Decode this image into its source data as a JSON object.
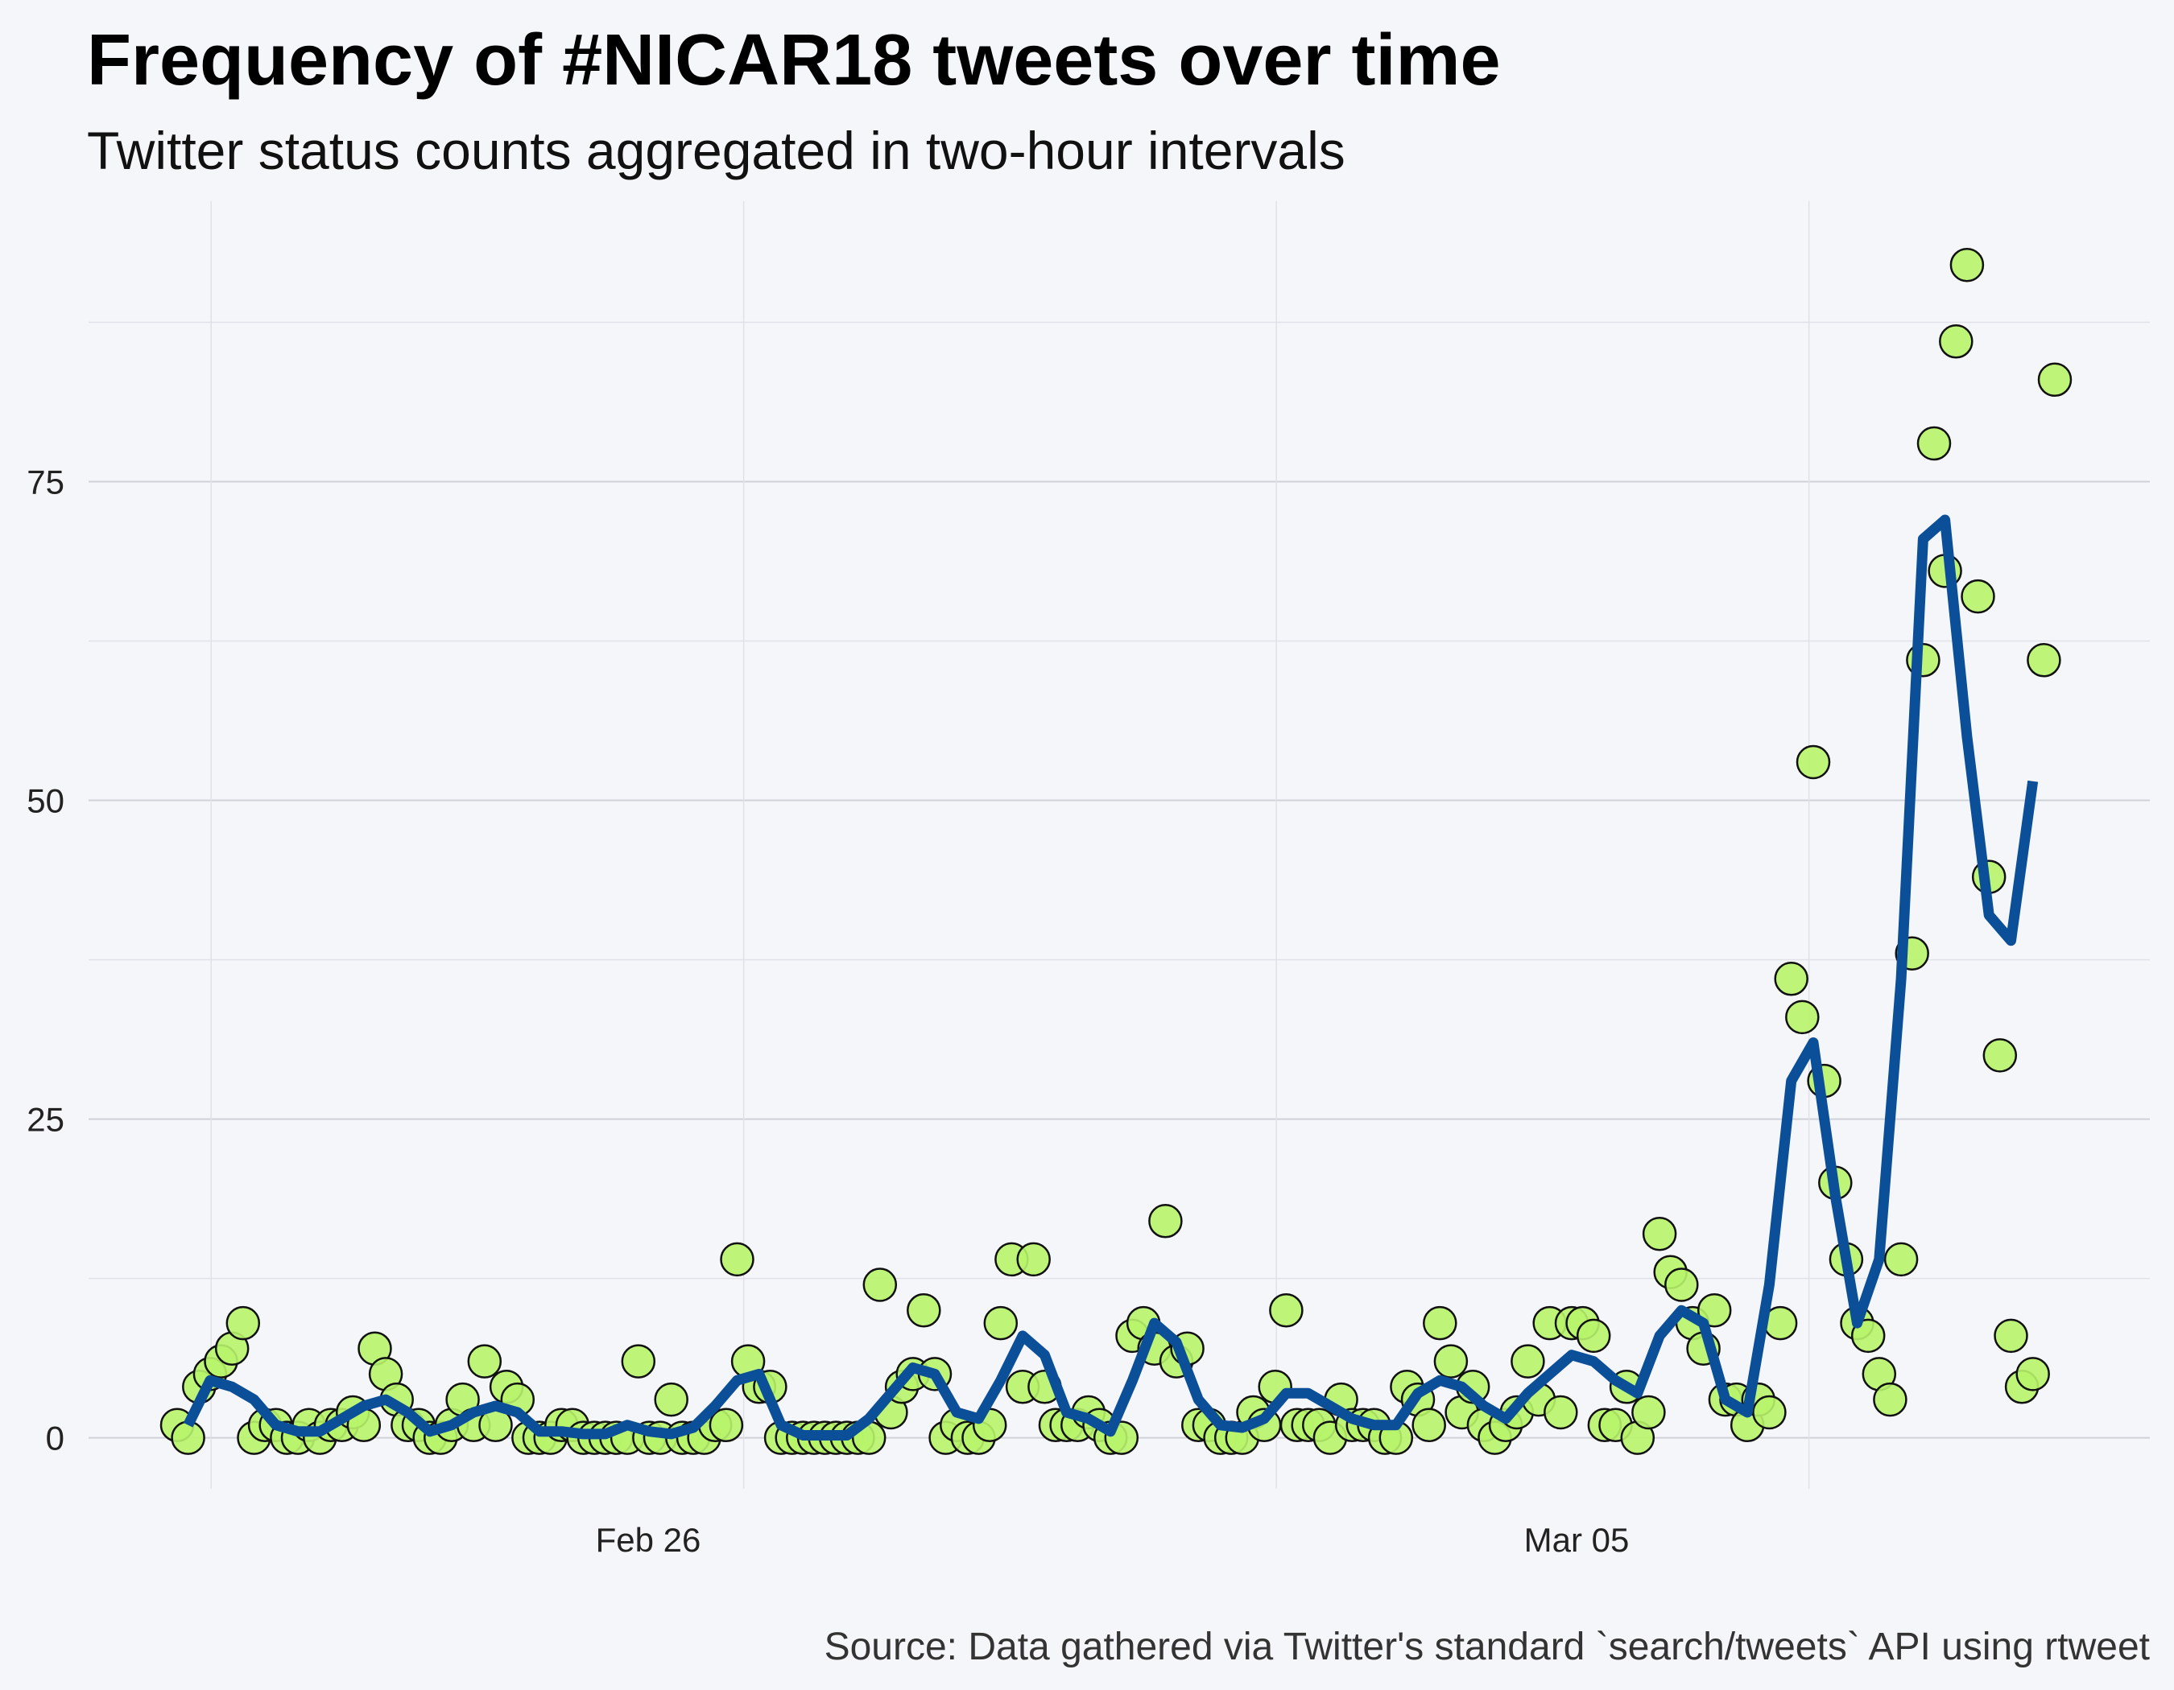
{
  "chart_data": {
    "type": "scatter",
    "title": "Frequency of #NICAR18 tweets over time",
    "subtitle": "Twitter status counts aggregated in two-hour intervals",
    "caption": "Source: Data gathered via Twitter's standard `search/tweets` API using rtweet",
    "xlabel": "",
    "ylabel": "",
    "x_ticks": [
      "Feb 26",
      "Mar 05"
    ],
    "y_ticks": [
      0,
      25,
      50,
      75
    ],
    "ylim": [
      -4,
      97
    ],
    "grid": true,
    "colors": {
      "points": "#b8f56a",
      "point_stroke": "#111111",
      "trend_line": "#0b4f98",
      "background": "#f5f6fa"
    },
    "x_range_days": [
      -9.1,
      11.1
    ],
    "points_day_offset_from_feb_26": [
      [
        -10.1,
        1
      ],
      [
        -10.0,
        0
      ],
      [
        -9.9,
        4
      ],
      [
        -9.8,
        5
      ],
      [
        -9.7,
        6
      ],
      [
        -9.6,
        7
      ],
      [
        -9.5,
        9
      ],
      [
        -9.4,
        0
      ],
      [
        -9.3,
        1
      ],
      [
        -9.2,
        1
      ],
      [
        -9.1,
        0
      ],
      [
        -9.0,
        0
      ],
      [
        -8.9,
        1
      ],
      [
        -8.8,
        0
      ],
      [
        -8.7,
        1
      ],
      [
        -8.6,
        1
      ],
      [
        -8.5,
        2
      ],
      [
        -8.4,
        1
      ],
      [
        -8.3,
        7
      ],
      [
        -8.2,
        5
      ],
      [
        -8.1,
        3
      ],
      [
        -8.0,
        1
      ],
      [
        -7.9,
        1
      ],
      [
        -7.8,
        0
      ],
      [
        -7.7,
        0
      ],
      [
        -7.6,
        1
      ],
      [
        -7.5,
        3
      ],
      [
        -7.4,
        1
      ],
      [
        -7.3,
        6
      ],
      [
        -7.2,
        1
      ],
      [
        -7.1,
        4
      ],
      [
        -7.0,
        3
      ],
      [
        -6.9,
        0
      ],
      [
        -6.8,
        0
      ],
      [
        -6.7,
        0
      ],
      [
        -6.6,
        1
      ],
      [
        -6.5,
        1
      ],
      [
        -6.4,
        0
      ],
      [
        -6.3,
        0
      ],
      [
        -6.2,
        0
      ],
      [
        -6.1,
        0
      ],
      [
        -6.0,
        0
      ],
      [
        -5.9,
        6
      ],
      [
        -5.8,
        0
      ],
      [
        -5.7,
        0
      ],
      [
        -5.6,
        3
      ],
      [
        -5.5,
        0
      ],
      [
        -5.4,
        0
      ],
      [
        -5.3,
        0
      ],
      [
        -5.2,
        1
      ],
      [
        -5.1,
        1
      ],
      [
        -5.0,
        14
      ],
      [
        -4.9,
        6
      ],
      [
        -4.8,
        4
      ],
      [
        -4.7,
        4
      ],
      [
        -4.6,
        0
      ],
      [
        -4.5,
        0
      ],
      [
        -4.4,
        0
      ],
      [
        -4.3,
        0
      ],
      [
        -4.2,
        0
      ],
      [
        -4.1,
        0
      ],
      [
        -4.0,
        0
      ],
      [
        -3.9,
        0
      ],
      [
        -3.8,
        0
      ],
      [
        -3.7,
        12
      ],
      [
        -3.6,
        2
      ],
      [
        -3.5,
        4
      ],
      [
        -3.4,
        5
      ],
      [
        -3.3,
        10
      ],
      [
        -3.2,
        5
      ],
      [
        -3.1,
        0
      ],
      [
        -3.0,
        1
      ],
      [
        -2.9,
        0
      ],
      [
        -2.8,
        0
      ],
      [
        -2.7,
        1
      ],
      [
        -2.6,
        9
      ],
      [
        -2.5,
        14
      ],
      [
        -2.4,
        4
      ],
      [
        -2.3,
        14
      ],
      [
        -2.2,
        4
      ],
      [
        -2.1,
        1
      ],
      [
        -2.0,
        1
      ],
      [
        -1.9,
        1
      ],
      [
        -1.8,
        2
      ],
      [
        -1.7,
        1
      ],
      [
        -1.6,
        0
      ],
      [
        -1.5,
        0
      ],
      [
        -1.4,
        8
      ],
      [
        -1.3,
        9
      ],
      [
        -1.2,
        7
      ],
      [
        -1.1,
        17
      ],
      [
        -1.0,
        6
      ],
      [
        -0.9,
        7
      ],
      [
        -0.8,
        1
      ],
      [
        -0.7,
        1
      ],
      [
        -0.6,
        0
      ],
      [
        -0.5,
        0
      ],
      [
        -0.4,
        0
      ],
      [
        -0.3,
        2
      ],
      [
        -0.2,
        1
      ],
      [
        -0.1,
        4
      ],
      [
        0.0,
        10
      ],
      [
        0.1,
        1
      ],
      [
        0.2,
        1
      ],
      [
        0.3,
        1
      ],
      [
        0.4,
        0
      ],
      [
        0.5,
        3
      ],
      [
        0.6,
        1
      ],
      [
        0.7,
        1
      ],
      [
        0.8,
        1
      ],
      [
        0.9,
        0
      ],
      [
        1.0,
        0
      ],
      [
        1.1,
        4
      ],
      [
        1.2,
        3
      ],
      [
        1.3,
        1
      ],
      [
        1.4,
        9
      ],
      [
        1.5,
        6
      ],
      [
        1.6,
        2
      ],
      [
        1.7,
        4
      ],
      [
        1.8,
        1
      ],
      [
        1.9,
        0
      ],
      [
        2.0,
        1
      ],
      [
        2.1,
        2
      ],
      [
        2.2,
        6
      ],
      [
        2.3,
        3
      ],
      [
        2.4,
        9
      ],
      [
        2.5,
        2
      ],
      [
        2.6,
        9
      ],
      [
        2.7,
        9
      ],
      [
        2.8,
        8
      ],
      [
        2.9,
        1
      ],
      [
        3.0,
        1
      ],
      [
        3.1,
        4
      ],
      [
        3.2,
        0
      ],
      [
        3.3,
        2
      ],
      [
        3.4,
        16
      ],
      [
        3.5,
        13
      ],
      [
        3.6,
        12
      ],
      [
        3.7,
        9
      ],
      [
        3.8,
        7
      ],
      [
        3.9,
        10
      ],
      [
        4.0,
        3
      ],
      [
        4.1,
        3
      ],
      [
        4.2,
        1
      ],
      [
        4.3,
        3
      ],
      [
        4.4,
        2
      ],
      [
        4.5,
        9
      ],
      [
        4.6,
        36
      ],
      [
        4.7,
        33
      ],
      [
        4.8,
        53
      ],
      [
        4.9,
        28
      ],
      [
        5.0,
        20
      ],
      [
        5.1,
        14
      ],
      [
        5.2,
        9
      ],
      [
        5.3,
        8
      ],
      [
        5.4,
        5
      ],
      [
        5.5,
        3
      ],
      [
        5.6,
        14
      ],
      [
        5.7,
        38
      ],
      [
        5.8,
        61
      ],
      [
        5.9,
        78
      ],
      [
        6.0,
        68
      ],
      [
        6.1,
        86
      ],
      [
        6.2,
        92
      ],
      [
        6.3,
        66
      ],
      [
        6.4,
        44
      ],
      [
        6.5,
        30
      ],
      [
        6.6,
        8
      ],
      [
        6.7,
        4
      ],
      [
        6.8,
        5
      ],
      [
        6.9,
        61
      ],
      [
        7.0,
        83
      ]
    ],
    "trend_line_day_offset_from_feb_26": [
      [
        -10.0,
        1
      ],
      [
        -9.8,
        4.5
      ],
      [
        -9.6,
        4
      ],
      [
        -9.4,
        3
      ],
      [
        -9.2,
        1
      ],
      [
        -9.0,
        0.5
      ],
      [
        -8.8,
        0.5
      ],
      [
        -8.6,
        1.5
      ],
      [
        -8.4,
        2.5
      ],
      [
        -8.2,
        3
      ],
      [
        -8.0,
        2
      ],
      [
        -7.8,
        0.5
      ],
      [
        -7.6,
        1
      ],
      [
        -7.4,
        2
      ],
      [
        -7.2,
        2.5
      ],
      [
        -7.0,
        2
      ],
      [
        -6.8,
        0.5
      ],
      [
        -6.6,
        0.5
      ],
      [
        -6.4,
        0.3
      ],
      [
        -6.2,
        0.3
      ],
      [
        -6.0,
        1
      ],
      [
        -5.8,
        0.5
      ],
      [
        -5.6,
        0.3
      ],
      [
        -5.4,
        0.8
      ],
      [
        -5.2,
        2.5
      ],
      [
        -5.0,
        4.5
      ],
      [
        -4.8,
        5
      ],
      [
        -4.6,
        1
      ],
      [
        -4.4,
        0.2
      ],
      [
        -4.2,
        0.2
      ],
      [
        -4.0,
        0.2
      ],
      [
        -3.8,
        1.5
      ],
      [
        -3.6,
        3.5
      ],
      [
        -3.4,
        5.5
      ],
      [
        -3.2,
        5
      ],
      [
        -3.0,
        2
      ],
      [
        -2.8,
        1.5
      ],
      [
        -2.6,
        4.5
      ],
      [
        -2.4,
        8
      ],
      [
        -2.2,
        6.5
      ],
      [
        -2.0,
        2
      ],
      [
        -1.8,
        1.5
      ],
      [
        -1.6,
        0.5
      ],
      [
        -1.4,
        4.5
      ],
      [
        -1.2,
        9
      ],
      [
        -1.0,
        7.5
      ],
      [
        -0.8,
        3
      ],
      [
        -0.6,
        1
      ],
      [
        -0.4,
        0.8
      ],
      [
        -0.2,
        1.5
      ],
      [
        0.0,
        3.5
      ],
      [
        0.2,
        3.5
      ],
      [
        0.4,
        2.5
      ],
      [
        0.6,
        1.5
      ],
      [
        0.8,
        1
      ],
      [
        1.0,
        1
      ],
      [
        1.2,
        3.5
      ],
      [
        1.4,
        4.5
      ],
      [
        1.6,
        4
      ],
      [
        1.8,
        2.5
      ],
      [
        2.0,
        1.5
      ],
      [
        2.2,
        3.5
      ],
      [
        2.4,
        5
      ],
      [
        2.6,
        6.5
      ],
      [
        2.8,
        6
      ],
      [
        3.0,
        4.5
      ],
      [
        3.2,
        3.5
      ],
      [
        3.4,
        8
      ],
      [
        3.6,
        10
      ],
      [
        3.8,
        9
      ],
      [
        4.0,
        3
      ],
      [
        4.2,
        2
      ],
      [
        4.4,
        12
      ],
      [
        4.6,
        28
      ],
      [
        4.8,
        31
      ],
      [
        5.0,
        19
      ],
      [
        5.2,
        9
      ],
      [
        5.4,
        14
      ],
      [
        5.6,
        36
      ],
      [
        5.8,
        70.5
      ],
      [
        6.0,
        72
      ],
      [
        6.2,
        55
      ],
      [
        6.4,
        41
      ],
      [
        6.6,
        39
      ],
      [
        6.8,
        51.5
      ]
    ]
  }
}
